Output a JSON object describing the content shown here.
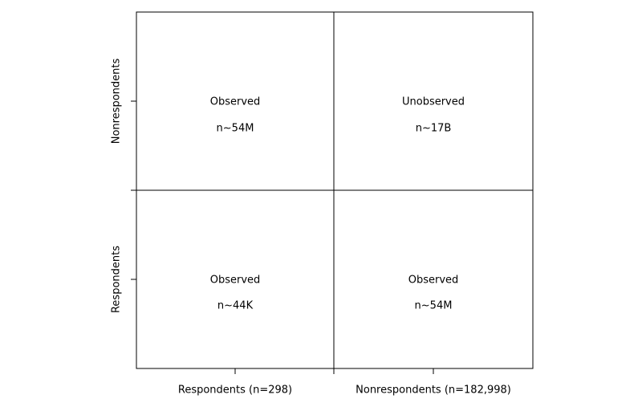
{
  "x_labels": [
    "Respondents (n=298)",
    "Nonrespondents (n=182,998)"
  ],
  "y_labels": [
    "Nonrespondents",
    "Respondents"
  ],
  "cells": [
    [
      {
        "status": "Observed",
        "n": "n~54M"
      },
      {
        "status": "Unobserved",
        "n": "n~17B"
      }
    ],
    [
      {
        "status": "Observed",
        "n": "n~44K"
      },
      {
        "status": "Observed",
        "n": "n~54M"
      }
    ]
  ]
}
